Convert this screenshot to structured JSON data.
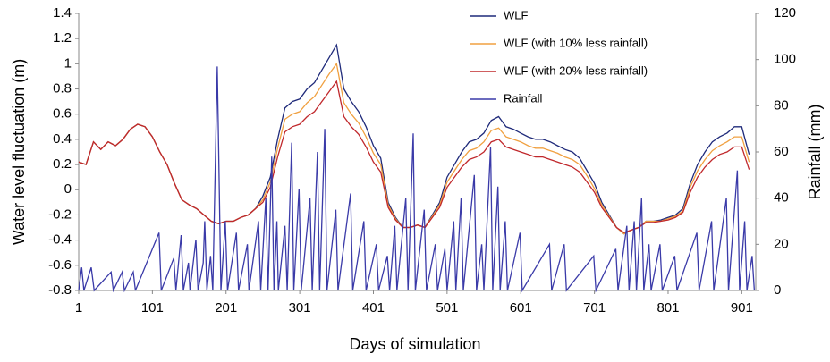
{
  "chart_data": {
    "type": "line",
    "x_label": "Days of simulation",
    "y_label": "Water level fluctuation (m)",
    "y2_label": "Rainfall (mm)",
    "xlim": [
      1,
      920
    ],
    "xticks": [
      1,
      101,
      201,
      301,
      401,
      501,
      601,
      701,
      801,
      901
    ],
    "ylim": [
      -0.8,
      1.4
    ],
    "yticks": [
      -0.8,
      -0.6,
      -0.4,
      -0.2,
      0,
      0.2,
      0.4,
      0.6,
      0.8,
      1,
      1.2,
      1.4
    ],
    "y2lim": [
      0,
      120
    ],
    "y2ticks": [
      0,
      20,
      40,
      60,
      80,
      100,
      120
    ],
    "grid": false,
    "legend": "upper right",
    "x": [
      1,
      11,
      21,
      31,
      41,
      51,
      61,
      71,
      81,
      91,
      101,
      111,
      121,
      131,
      141,
      151,
      161,
      171,
      181,
      191,
      201,
      211,
      221,
      231,
      241,
      251,
      261,
      271,
      281,
      291,
      301,
      311,
      321,
      331,
      341,
      351,
      361,
      371,
      381,
      391,
      401,
      411,
      421,
      431,
      441,
      451,
      461,
      471,
      481,
      491,
      501,
      511,
      521,
      531,
      541,
      551,
      561,
      571,
      581,
      591,
      601,
      611,
      621,
      631,
      641,
      651,
      661,
      671,
      681,
      691,
      701,
      711,
      721,
      731,
      741,
      751,
      761,
      771,
      781,
      791,
      801,
      811,
      821,
      831,
      841,
      851,
      861,
      871,
      881,
      891,
      901,
      911
    ],
    "series": [
      {
        "name": "WLF",
        "color": "#1f2a7a",
        "values": [
          0.22,
          0.2,
          0.38,
          0.32,
          0.38,
          0.35,
          0.4,
          0.48,
          0.52,
          0.5,
          0.42,
          0.3,
          0.2,
          0.05,
          -0.08,
          -0.12,
          -0.15,
          -0.2,
          -0.25,
          -0.27,
          -0.25,
          -0.25,
          -0.22,
          -0.2,
          -0.15,
          -0.05,
          0.1,
          0.4,
          0.65,
          0.7,
          0.72,
          0.8,
          0.85,
          0.95,
          1.05,
          1.15,
          0.8,
          0.7,
          0.62,
          0.5,
          0.35,
          0.25,
          -0.1,
          -0.22,
          -0.3,
          -0.3,
          -0.28,
          -0.3,
          -0.2,
          -0.1,
          0.1,
          0.2,
          0.3,
          0.38,
          0.4,
          0.45,
          0.55,
          0.58,
          0.5,
          0.48,
          0.45,
          0.42,
          0.4,
          0.4,
          0.38,
          0.35,
          0.32,
          0.3,
          0.25,
          0.15,
          0.05,
          -0.1,
          -0.2,
          -0.3,
          -0.35,
          -0.32,
          -0.3,
          -0.25,
          -0.25,
          -0.24,
          -0.22,
          -0.2,
          -0.15,
          0.05,
          0.2,
          0.3,
          0.38,
          0.42,
          0.45,
          0.5,
          0.5,
          0.28
        ]
      },
      {
        "name": "WLF (with 10% less rainfall)",
        "color": "#f0a040",
        "values": [
          0.22,
          0.2,
          0.38,
          0.32,
          0.38,
          0.35,
          0.4,
          0.48,
          0.52,
          0.5,
          0.42,
          0.3,
          0.2,
          0.05,
          -0.08,
          -0.12,
          -0.15,
          -0.2,
          -0.25,
          -0.27,
          -0.25,
          -0.25,
          -0.22,
          -0.2,
          -0.15,
          -0.08,
          0.06,
          0.33,
          0.56,
          0.6,
          0.62,
          0.69,
          0.74,
          0.83,
          0.92,
          1.0,
          0.69,
          0.6,
          0.53,
          0.42,
          0.29,
          0.2,
          -0.12,
          -0.23,
          -0.3,
          -0.3,
          -0.28,
          -0.3,
          -0.21,
          -0.12,
          0.06,
          0.15,
          0.24,
          0.31,
          0.33,
          0.38,
          0.47,
          0.49,
          0.42,
          0.4,
          0.38,
          0.35,
          0.33,
          0.33,
          0.31,
          0.29,
          0.26,
          0.24,
          0.2,
          0.11,
          0.01,
          -0.12,
          -0.21,
          -0.3,
          -0.35,
          -0.32,
          -0.3,
          -0.25,
          -0.25,
          -0.25,
          -0.23,
          -0.21,
          -0.17,
          0.02,
          0.15,
          0.24,
          0.31,
          0.35,
          0.38,
          0.42,
          0.42,
          0.22
        ]
      },
      {
        "name": "WLF (with 20% less rainfall)",
        "color": "#c0282c",
        "values": [
          0.22,
          0.2,
          0.38,
          0.32,
          0.38,
          0.35,
          0.4,
          0.48,
          0.52,
          0.5,
          0.42,
          0.3,
          0.2,
          0.05,
          -0.08,
          -0.12,
          -0.15,
          -0.2,
          -0.25,
          -0.27,
          -0.25,
          -0.25,
          -0.22,
          -0.2,
          -0.15,
          -0.1,
          0.02,
          0.26,
          0.46,
          0.5,
          0.52,
          0.58,
          0.62,
          0.7,
          0.78,
          0.86,
          0.58,
          0.5,
          0.44,
          0.34,
          0.22,
          0.14,
          -0.14,
          -0.24,
          -0.3,
          -0.3,
          -0.28,
          -0.3,
          -0.22,
          -0.14,
          0.02,
          0.1,
          0.18,
          0.24,
          0.26,
          0.3,
          0.38,
          0.4,
          0.34,
          0.32,
          0.3,
          0.28,
          0.26,
          0.26,
          0.24,
          0.22,
          0.2,
          0.18,
          0.14,
          0.06,
          -0.02,
          -0.14,
          -0.22,
          -0.3,
          -0.34,
          -0.32,
          -0.3,
          -0.26,
          -0.26,
          -0.25,
          -0.24,
          -0.22,
          -0.18,
          -0.02,
          0.1,
          0.18,
          0.24,
          0.28,
          0.3,
          0.34,
          0.34,
          0.16
        ]
      },
      {
        "name": "Rainfall",
        "color": "#3a3aa8",
        "axis": "y2",
        "x": [
          1,
          5,
          8,
          18,
          22,
          45,
          48,
          60,
          63,
          75,
          78,
          110,
          113,
          130,
          133,
          140,
          143,
          150,
          152,
          160,
          163,
          170,
          172,
          175,
          180,
          183,
          189,
          191,
          194,
          200,
          203,
          215,
          218,
          230,
          232,
          245,
          248,
          255,
          258,
          263,
          266,
          270,
          272,
          281,
          284,
          290,
          293,
          300,
          303,
          315,
          318,
          325,
          328,
          335,
          338,
          350,
          353,
          370,
          373,
          388,
          391,
          405,
          408,
          420,
          423,
          430,
          433,
          445,
          448,
          455,
          458,
          470,
          473,
          485,
          488,
          498,
          501,
          510,
          513,
          520,
          523,
          538,
          541,
          548,
          551,
          560,
          563,
          570,
          573,
          580,
          583,
          600,
          603,
          640,
          643,
          660,
          663,
          700,
          703,
          730,
          733,
          745,
          748,
          755,
          758,
          765,
          768,
          775,
          778,
          790,
          793,
          810,
          813,
          840,
          843,
          860,
          863,
          880,
          883,
          895,
          898,
          905,
          908,
          915,
          918
        ],
        "values": [
          0,
          10,
          0,
          10,
          0,
          8,
          0,
          8,
          0,
          8,
          0,
          25,
          0,
          14,
          0,
          24,
          0,
          12,
          0,
          22,
          0,
          12,
          30,
          0,
          15,
          0,
          97,
          60,
          0,
          30,
          0,
          25,
          0,
          20,
          0,
          30,
          0,
          40,
          0,
          58,
          0,
          30,
          0,
          28,
          0,
          64,
          0,
          44,
          0,
          40,
          0,
          60,
          0,
          70,
          0,
          35,
          0,
          42,
          0,
          30,
          0,
          20,
          0,
          15,
          0,
          28,
          0,
          40,
          0,
          68,
          0,
          35,
          0,
          20,
          0,
          18,
          0,
          30,
          0,
          40,
          0,
          50,
          0,
          20,
          0,
          62,
          0,
          45,
          0,
          30,
          0,
          25,
          0,
          20,
          0,
          20,
          0,
          15,
          0,
          18,
          0,
          28,
          0,
          30,
          0,
          40,
          0,
          20,
          0,
          20,
          0,
          15,
          0,
          25,
          0,
          30,
          0,
          40,
          0,
          52,
          0,
          30,
          0,
          15,
          0
        ]
      }
    ]
  }
}
